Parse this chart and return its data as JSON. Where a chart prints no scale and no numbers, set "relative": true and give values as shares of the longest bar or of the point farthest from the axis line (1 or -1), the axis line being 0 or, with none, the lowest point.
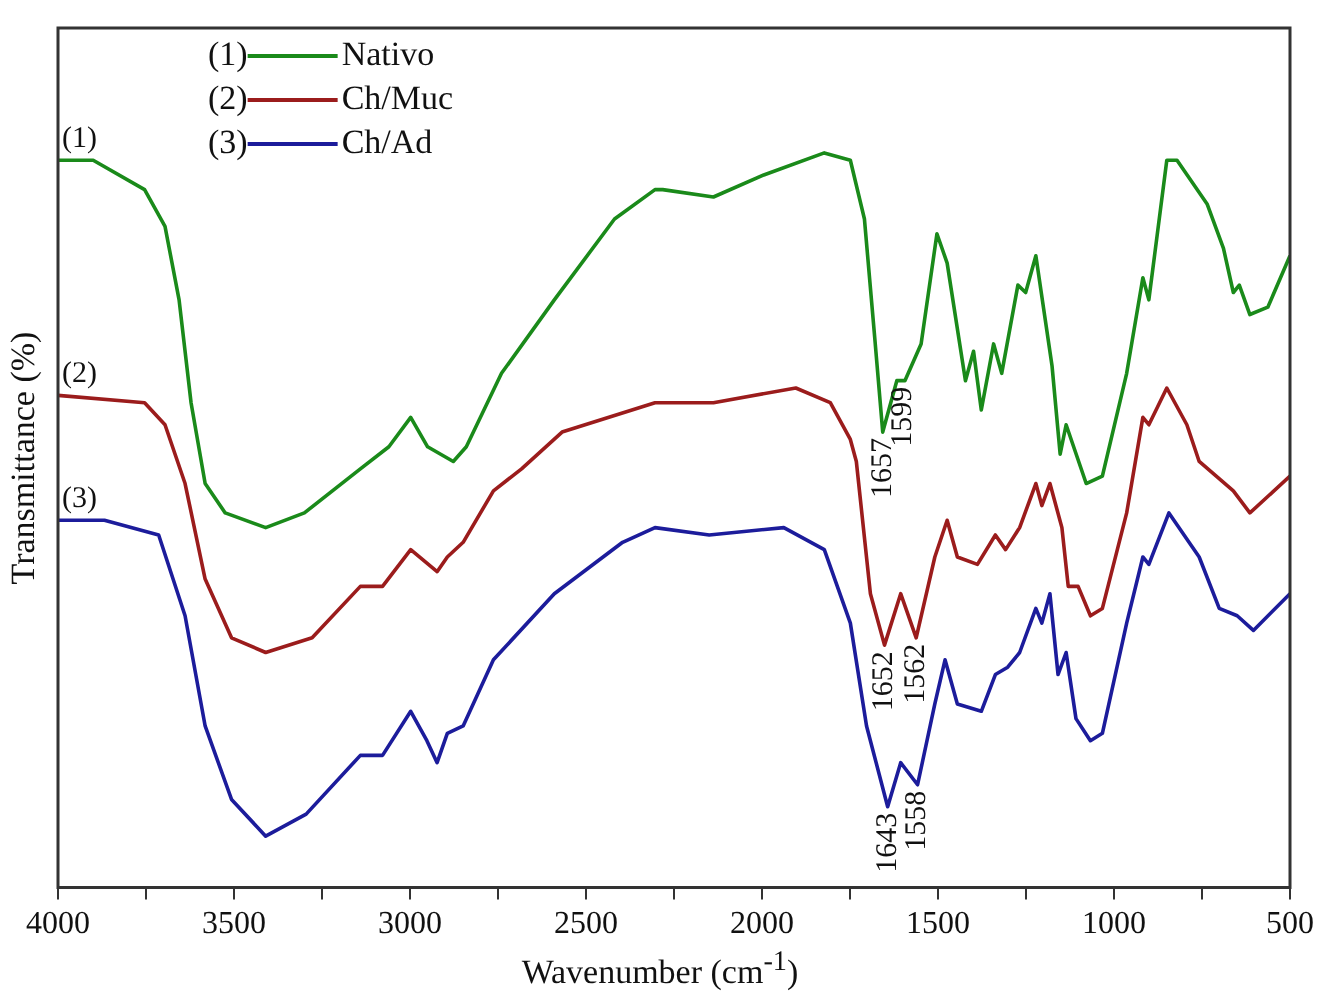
{
  "chart_data": {
    "type": "line",
    "xlabel": "Wavenumber (cm$^{-1}$)",
    "ylabel": "Transmittance (%)",
    "relative": true,
    "legend": "top left",
    "grid": false,
    "marker": "none",
    "line_style": "solid",
    "xlim": [
      4000,
      500
    ],
    "xticks": [
      4000,
      {
        "value": 3750,
        "label": null
      },
      3500,
      {
        "value": 3250,
        "label": null
      },
      3000,
      {
        "value": 2750,
        "label": null
      },
      2500,
      {
        "value": 2250,
        "label": null
      },
      2000,
      {
        "value": 1750,
        "label": null
      },
      1500,
      {
        "value": 1250,
        "label": null
      },
      1000,
      {
        "value": 750,
        "label": null
      },
      500
    ],
    "x": [
      4000,
      3900,
      3754,
      3696,
      3656,
      3622,
      3582,
      3525,
      3410,
      3300,
      3141,
      3060,
      2998,
      2950,
      2877,
      2840,
      2740,
      2590,
      2419,
      2304,
      2282,
      2138,
      1995,
      1823,
      1749,
      1709,
      1680,
      1657,
      1617,
      1594,
      1548,
      1503,
      1474,
      1422,
      1399,
      1377,
      1342,
      1319,
      1273,
      1251,
      1222,
      1176,
      1153,
      1136,
      1079,
      1033,
      964,
      918,
      901,
      850,
      821,
      735,
      689,
      661,
      644,
      614,
      563,
      500
    ],
    "series": [
      {
        "name": "Nativo",
        "color": "#1a8a1a",
        "values": [
          0.99,
          0.99,
          0.95,
          0.9,
          0.8,
          0.66,
          0.55,
          0.51,
          0.49,
          0.51,
          0.57,
          0.6,
          0.64,
          0.6,
          0.58,
          0.6,
          0.7,
          0.8,
          0.91,
          0.95,
          0.95,
          0.94,
          0.97,
          1,
          0.99,
          0.91,
          0.75,
          0.62,
          0.69,
          0.69,
          0.74,
          0.89,
          0.85,
          0.69,
          0.73,
          0.65,
          0.74,
          0.7,
          0.82,
          0.81,
          0.86,
          0.71,
          0.59,
          0.63,
          0.55,
          0.56,
          0.7,
          0.83,
          0.8,
          0.99,
          0.99,
          0.93,
          0.87,
          0.81,
          0.82,
          0.78,
          0.79,
          0.86
        ]
      },
      {
        "name": "Ch/Muc",
        "color": "#9b1c1c",
        "x": [
          4000,
          3754,
          3696,
          3639,
          3582,
          3507,
          3410,
          3278,
          3141,
          3078,
          2998,
          2923,
          2894,
          2849,
          2763,
          2683,
          2568,
          2304,
          2138,
          1904,
          1806,
          1749,
          1732,
          1692,
          1652,
          1606,
          1562,
          1509,
          1474,
          1445,
          1388,
          1337,
          1308,
          1268,
          1222,
          1205,
          1182,
          1148,
          1130,
          1102,
          1067,
          1033,
          964,
          918,
          901,
          850,
          793,
          758,
          661,
          614,
          500
        ],
        "values": [
          0.67,
          0.66,
          0.63,
          0.55,
          0.42,
          0.34,
          0.32,
          0.34,
          0.41,
          0.41,
          0.46,
          0.43,
          0.45,
          0.47,
          0.54,
          0.57,
          0.62,
          0.66,
          0.66,
          0.68,
          0.66,
          0.61,
          0.58,
          0.4,
          0.33,
          0.4,
          0.34,
          0.45,
          0.5,
          0.45,
          0.44,
          0.48,
          0.46,
          0.49,
          0.55,
          0.52,
          0.55,
          0.49,
          0.41,
          0.41,
          0.37,
          0.38,
          0.51,
          0.64,
          0.63,
          0.68,
          0.63,
          0.58,
          0.54,
          0.51,
          0.56
        ]
      },
      {
        "name": "Ch/Ad",
        "color": "#1c1c9b",
        "x": [
          4000,
          3868,
          3714,
          3639,
          3582,
          3507,
          3410,
          3295,
          3141,
          3078,
          2998,
          2952,
          2923,
          2894,
          2849,
          2763,
          2590,
          2396,
          2304,
          2150,
          1938,
          1823,
          1749,
          1703,
          1643,
          1606,
          1558,
          1509,
          1480,
          1445,
          1377,
          1337,
          1302,
          1268,
          1222,
          1205,
          1182,
          1159,
          1136,
          1108,
          1067,
          1033,
          964,
          918,
          901,
          844,
          758,
          701,
          650,
          604,
          500
        ],
        "values": [
          0.5,
          0.5,
          0.48,
          0.37,
          0.22,
          0.12,
          0.07,
          0.1,
          0.18,
          0.18,
          0.24,
          0.2,
          0.17,
          0.21,
          0.22,
          0.31,
          0.4,
          0.47,
          0.49,
          0.48,
          0.49,
          0.46,
          0.36,
          0.22,
          0.11,
          0.17,
          0.14,
          0.25,
          0.31,
          0.25,
          0.24,
          0.29,
          0.3,
          0.32,
          0.38,
          0.36,
          0.4,
          0.29,
          0.32,
          0.23,
          0.2,
          0.21,
          0.36,
          0.45,
          0.44,
          0.51,
          0.45,
          0.38,
          0.37,
          0.35,
          0.4
        ]
      }
    ],
    "annotations": [
      {
        "text": "(1)",
        "x": 4000,
        "y": 0.99
      },
      {
        "text": "(2)",
        "x": 4000,
        "y": 0.67
      },
      {
        "text": "(3)",
        "x": 4000,
        "y": 0.5
      },
      {
        "text": "1657",
        "x": 1657,
        "y": 0.62
      },
      {
        "text": "1599",
        "x": 1599,
        "y": 0.69
      },
      {
        "text": "1652",
        "x": 1652,
        "y": 0.33
      },
      {
        "text": "1562",
        "x": 1562,
        "y": 0.34
      },
      {
        "text": "1643",
        "x": 1643,
        "y": 0.11
      },
      {
        "text": "1558",
        "x": 1558,
        "y": 0.14
      }
    ]
  }
}
